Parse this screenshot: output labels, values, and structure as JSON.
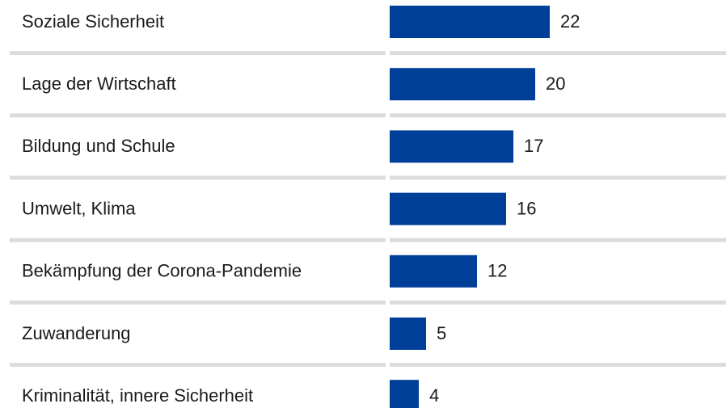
{
  "chart_data": {
    "type": "bar",
    "orientation": "horizontal",
    "categories": [
      "Soziale Sicherheit",
      "Lage der Wirtschaft",
      "Bildung und Schule",
      "Umwelt, Klima",
      "Bekämpfung der Corona-Pandemie",
      "Zuwanderung",
      "Kriminalität, innere Sicherheit"
    ],
    "values": [
      22,
      20,
      17,
      16,
      12,
      5,
      4
    ],
    "color": "#003f98"
  }
}
